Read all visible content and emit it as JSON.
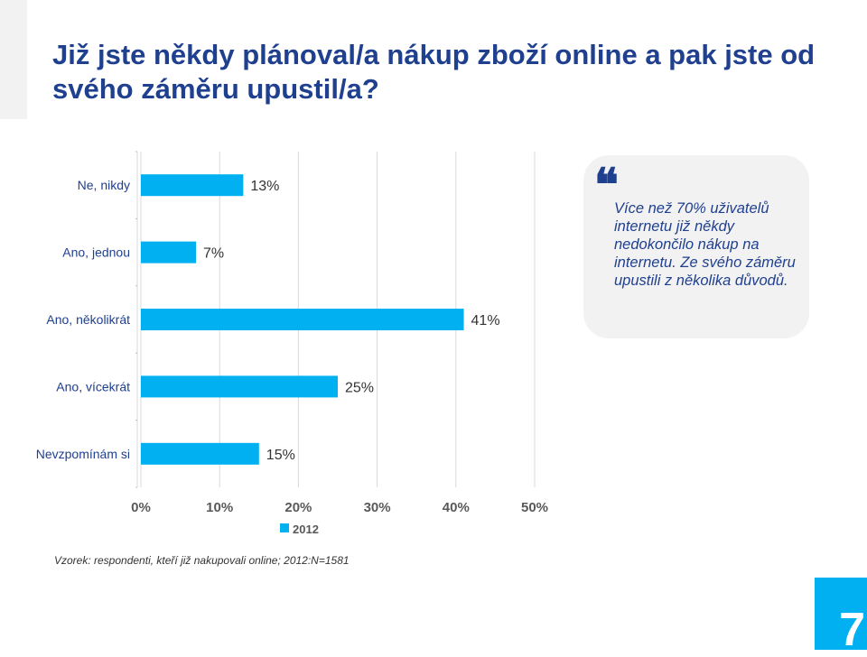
{
  "title": "Již jste někdy plánoval/a nákup zboží online a pak jste od svého záměru upustil/a?",
  "chart_data": {
    "type": "bar",
    "orientation": "horizontal",
    "categories": [
      "Ne, nikdy",
      "Ano, jednou",
      "Ano, několikrát",
      "Ano, vícekrát",
      "Nevzpomínám si"
    ],
    "series": [
      {
        "name": "2012",
        "values": [
          13,
          7,
          41,
          25,
          15
        ],
        "color": "#00b0f0"
      }
    ],
    "value_labels": [
      "13%",
      "7%",
      "41%",
      "25%",
      "15%"
    ],
    "x_ticks": [
      "0%",
      "10%",
      "20%",
      "30%",
      "40%",
      "50%"
    ],
    "xlim": [
      0,
      50
    ],
    "grid": true,
    "legend": "bottom"
  },
  "callout": {
    "quote_mark": "❝",
    "text": "Více než 70% uživatelů internetu již někdy nedokončilo nákup na internetu. Ze svého záměru upustili z několika důvodů."
  },
  "footnote": "Vzorek: respondenti, kteří již nakupovali online; 2012:N=1581",
  "page_number": "7",
  "colors": {
    "accent": "#00b0f0",
    "title": "#1f3f8f",
    "callout_bg": "#f2f2f2"
  }
}
